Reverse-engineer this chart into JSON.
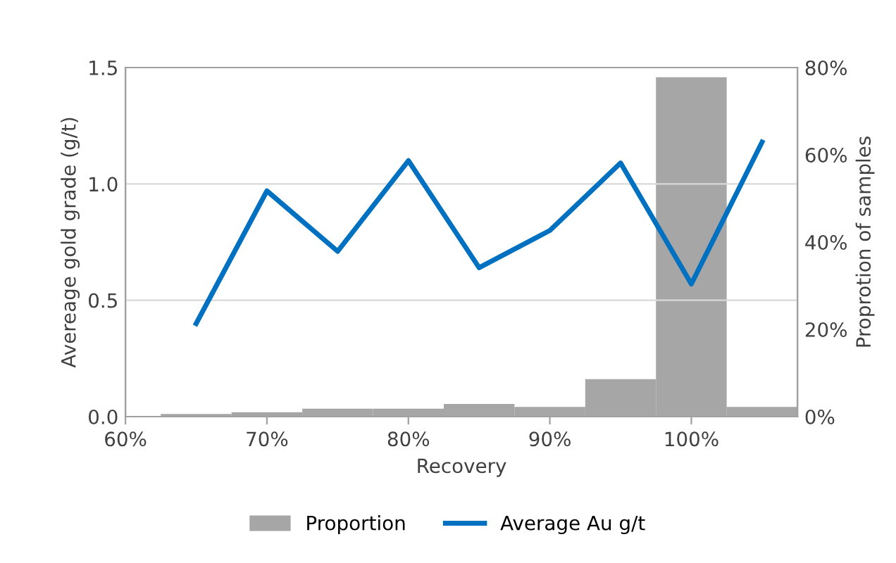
{
  "chart_data": {
    "type": "bar",
    "xlabel": "Recovery",
    "ylabel": "Avereage gold grade (g/t)",
    "y2label": "Proprotion of samples",
    "xlim": [
      60,
      107.5
    ],
    "xticks": [
      {
        "value": 60,
        "label": "60%"
      },
      {
        "value": 70,
        "label": "70%"
      },
      {
        "value": 80,
        "label": "80%"
      },
      {
        "value": 90,
        "label": "90%"
      },
      {
        "value": 100,
        "label": "100%"
      }
    ],
    "ylim": [
      0,
      1.5
    ],
    "yticks": [
      {
        "value": 0,
        "label": "0.0"
      },
      {
        "value": 0.5,
        "label": "0.5"
      },
      {
        "value": 1.0,
        "label": "1.0"
      },
      {
        "value": 1.5,
        "label": "1.5"
      }
    ],
    "y2lim": [
      0,
      80
    ],
    "y2ticks": [
      {
        "value": 0,
        "label": "0%"
      },
      {
        "value": 20,
        "label": "20%"
      },
      {
        "value": 40,
        "label": "40%"
      },
      {
        "value": 60,
        "label": "60%"
      },
      {
        "value": 80,
        "label": "80%"
      }
    ],
    "grid": "y",
    "legend": "bottom",
    "series": [
      {
        "name": "Proportion",
        "axis": "y2",
        "color": "#a6a6a6",
        "x": [
          60,
          65,
          70,
          75,
          80,
          85,
          90,
          95,
          100,
          105
        ],
        "values": [
          0.1,
          0.6,
          1.0,
          1.8,
          1.8,
          2.9,
          2.2,
          8.6,
          77.8,
          2.2
        ]
      },
      {
        "name": "Average Au g/t",
        "type": "line",
        "axis": "y",
        "color": "#0070c0",
        "x": [
          65,
          70,
          75,
          80,
          85,
          90,
          95,
          100,
          105
        ],
        "values": [
          0.4,
          0.97,
          0.71,
          1.1,
          0.64,
          0.8,
          1.09,
          0.57,
          1.18
        ]
      }
    ]
  }
}
